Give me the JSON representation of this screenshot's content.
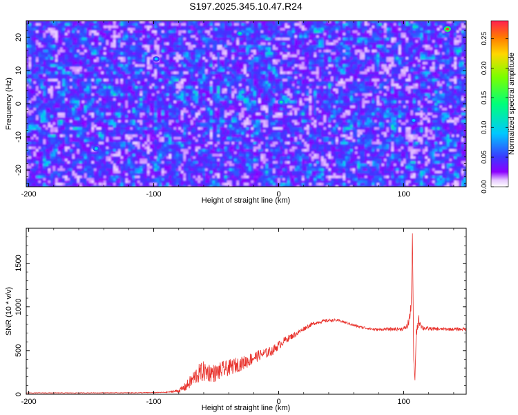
{
  "title": "S197.2025.345.10.47.R24",
  "chart_data": [
    {
      "type": "heatmap",
      "xlabel": "Height of straight line (km)",
      "ylabel": "Frequency (Hz)",
      "xlim": [
        -202,
        150
      ],
      "ylim": [
        -25,
        25
      ],
      "x_ticks": [
        -200,
        -100,
        0,
        100
      ],
      "x_tick_labels": [
        "-200",
        "-100",
        "0",
        "100"
      ],
      "y_ticks": [
        -20,
        -10,
        0,
        10,
        20
      ],
      "y_tick_labels": [
        "-20",
        "-10",
        "0",
        "10",
        "20"
      ],
      "colorbar": {
        "label": "Normalized spectral amplitude",
        "range": [
          0,
          0.28
        ],
        "ticks": [
          0,
          0.05,
          0.1,
          0.15,
          0.2,
          0.25
        ],
        "tick_labels": [
          "0.00",
          "0.05",
          "0.10",
          "0.15",
          "0.20",
          "0.25"
        ],
        "colors": [
          "#ffffff",
          "#8b00ff",
          "#3a3aff",
          "#00c8ff",
          "#00ff7a",
          "#7aff00",
          "#ffd700",
          "#ff7a00",
          "#ff2050"
        ]
      },
      "peaks": [
        {
          "x": 135,
          "y": 22.5,
          "value": 0.27
        },
        {
          "x": 2,
          "y": 0.5,
          "value": 0.12
        },
        {
          "x": -31,
          "y": 21.2,
          "value": 0.12
        },
        {
          "x": -146,
          "y": -13.5,
          "value": 0.1
        },
        {
          "x": 108,
          "y": -5,
          "value": 0.09
        },
        {
          "x": -98,
          "y": 13.5,
          "value": 0.09
        }
      ]
    },
    {
      "type": "line",
      "xlabel": "Height of straight line (km)",
      "ylabel": "SNR (10 * v/v)",
      "xlim": [
        -202,
        150
      ],
      "ylim": [
        0,
        1900
      ],
      "x_ticks": [
        -200,
        -100,
        0,
        100
      ],
      "x_tick_labels": [
        "-200",
        "-100",
        "0",
        "100"
      ],
      "y_ticks": [
        0,
        500,
        1000,
        1500
      ],
      "y_tick_labels": [
        "0",
        "500",
        "1000",
        "1500"
      ],
      "color": "#e8302a",
      "series": [
        {
          "x": [
            -202,
            -180,
            -160,
            -140,
            -120,
            -100,
            -90,
            -80,
            -75,
            -70,
            -65,
            -60,
            -55,
            -50,
            -45,
            -40,
            -35,
            -30,
            -25,
            -20,
            -15,
            -10,
            -5,
            0,
            5,
            10,
            15,
            20,
            25,
            30,
            35,
            40,
            45,
            50,
            55,
            60,
            65,
            70,
            75,
            80,
            85,
            90,
            95,
            100,
            103,
            105,
            106,
            107,
            108,
            109,
            110,
            112,
            115,
            120,
            130,
            140,
            150
          ],
          "values": [
            15,
            15,
            15,
            16,
            16,
            18,
            22,
            40,
            80,
            150,
            230,
            260,
            250,
            240,
            280,
            300,
            330,
            350,
            380,
            420,
            450,
            470,
            500,
            560,
            620,
            660,
            700,
            750,
            790,
            820,
            835,
            845,
            850,
            835,
            815,
            790,
            770,
            760,
            745,
            740,
            745,
            745,
            745,
            750,
            780,
            900,
            1000,
            1850,
            400,
            150,
            700,
            850,
            760,
            750,
            745,
            745,
            745
          ],
          "noise": [
            3,
            3,
            3,
            3,
            3,
            4,
            5,
            20,
            50,
            80,
            110,
            120,
            110,
            100,
            100,
            90,
            90,
            80,
            80,
            70,
            60,
            60,
            55,
            50,
            40,
            35,
            30,
            25,
            25,
            20,
            20,
            18,
            15,
            15,
            15,
            15,
            15,
            15,
            15,
            15,
            15,
            18,
            20,
            20,
            40,
            80,
            60,
            0,
            0,
            0,
            60,
            60,
            30,
            20,
            18,
            18,
            18
          ]
        }
      ]
    }
  ]
}
